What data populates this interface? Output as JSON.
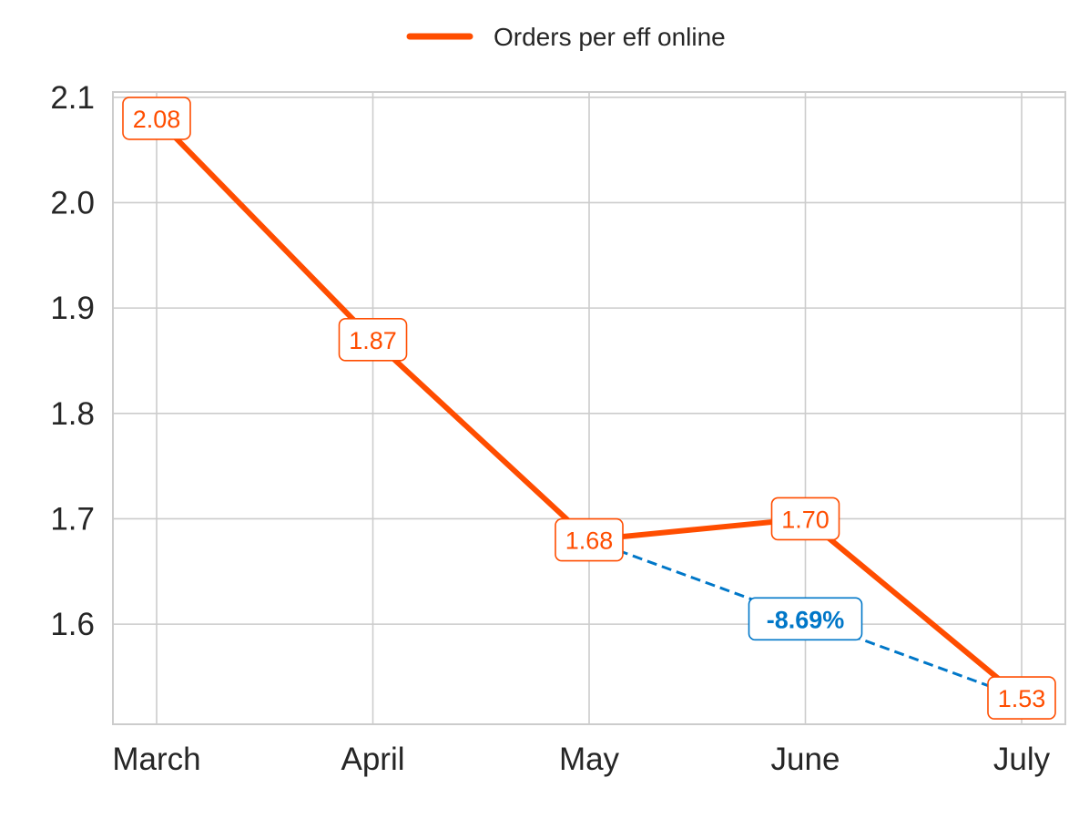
{
  "chart_data": {
    "type": "line",
    "title": "",
    "xlabel": "",
    "ylabel": "",
    "categories": [
      "March",
      "April",
      "May",
      "June",
      "July"
    ],
    "series": [
      {
        "name": "Orders per eff online",
        "values": [
          2.08,
          1.87,
          1.68,
          1.7,
          1.53
        ],
        "labels": [
          "2.08",
          "1.87",
          "1.68",
          "1.70",
          "1.53"
        ],
        "color": "#FF4D00"
      }
    ],
    "ylim": [
      1.505,
      2.105
    ],
    "yticks": [
      1.6,
      1.7,
      1.8,
      1.9,
      2.0,
      2.1
    ],
    "ytick_labels": [
      "1.6",
      "1.7",
      "1.8",
      "1.9",
      "2.0",
      "2.1"
    ],
    "grid": true,
    "legend": {
      "position": "top-center",
      "entries": [
        "Orders per eff online"
      ]
    },
    "annotation": {
      "text": "-8.69%",
      "from_category": "May",
      "to_category": "July",
      "color": "#0077C8",
      "style": "dashed"
    }
  }
}
